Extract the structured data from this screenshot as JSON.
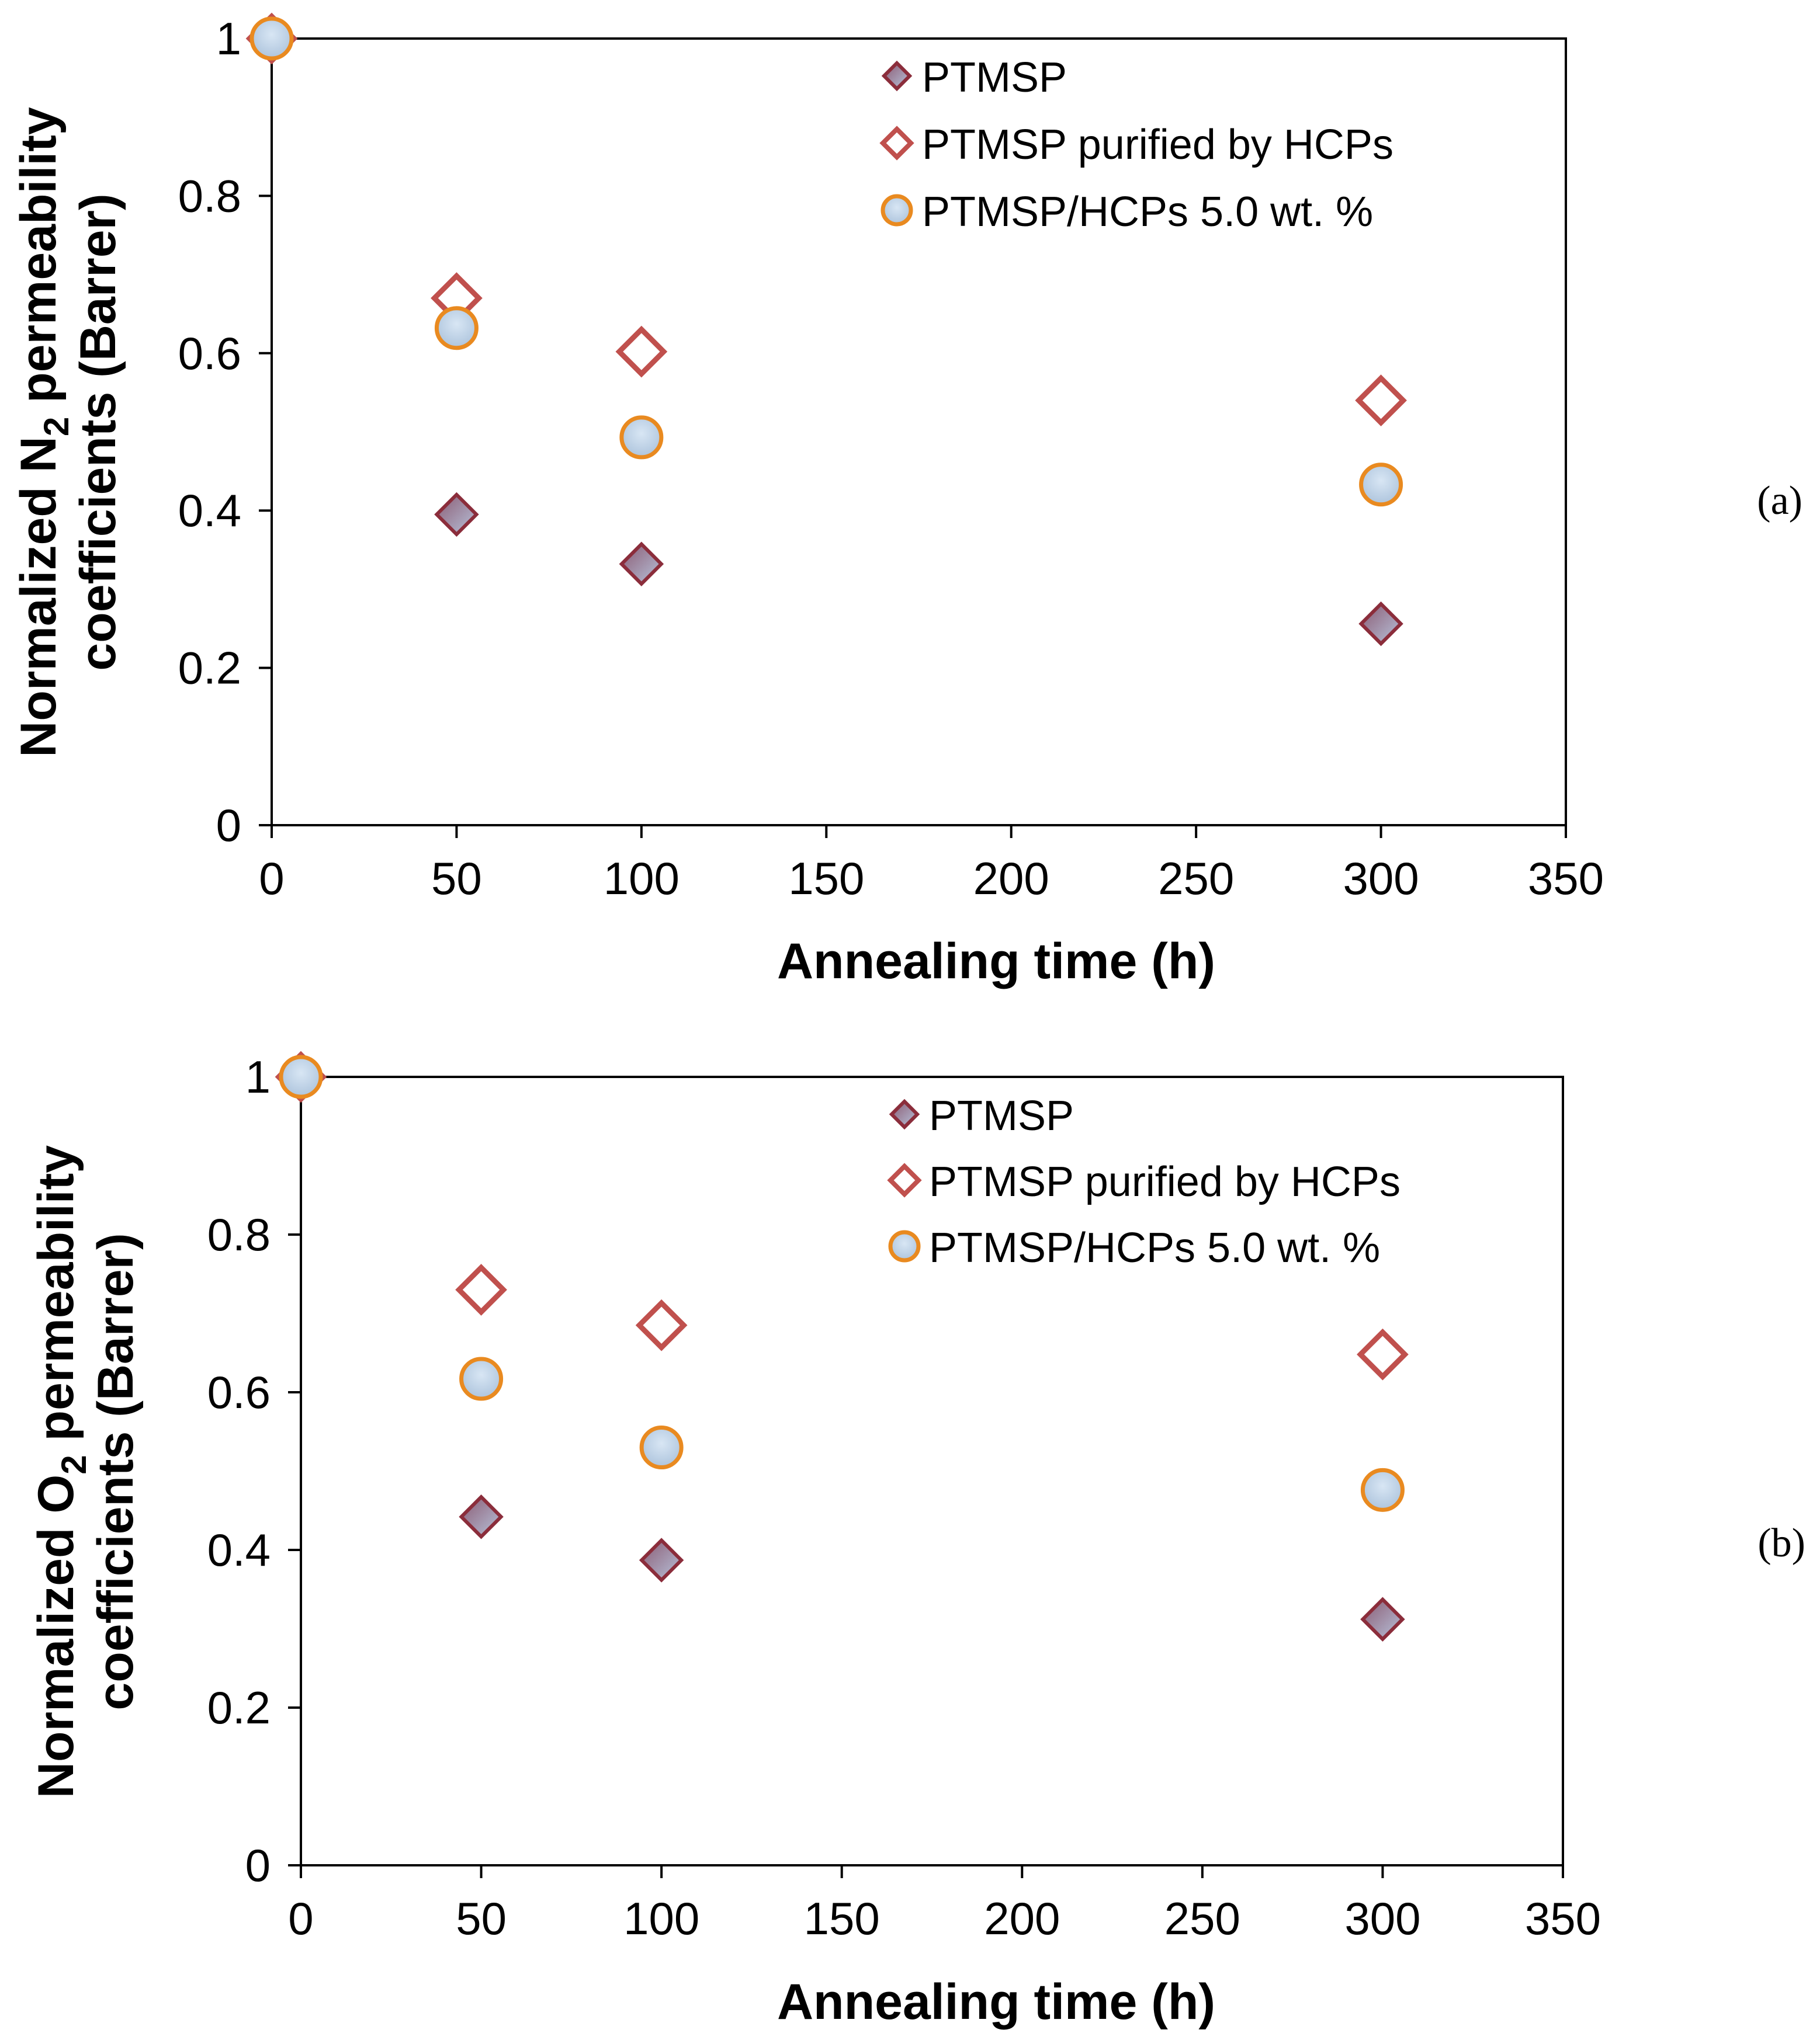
{
  "chart_data": [
    {
      "type": "scatter",
      "panel_label": "(a)",
      "xlabel": "Annealing time (h)",
      "ylabel_parts": [
        "Normalized N",
        "2",
        " permeability"
      ],
      "ylabel_line2": "coefficients (Barrer)",
      "xlim": [
        0,
        350
      ],
      "ylim": [
        0,
        1
      ],
      "x_ticks": [
        "0",
        "50",
        "100",
        "150",
        "200",
        "250",
        "300",
        "350"
      ],
      "y_ticks": [
        "0",
        "0.2",
        "0.4",
        "0.6",
        "0.8",
        "1"
      ],
      "grid": false,
      "legend_position": "top-right",
      "series": [
        {
          "name": "PTMSP",
          "marker": "filled-diamond",
          "x": [
            0,
            50,
            100,
            300
          ],
          "y": [
            1.0,
            0.395,
            0.332,
            0.256
          ]
        },
        {
          "name": "PTMSP purified by HCPs",
          "marker": "open-diamond",
          "x": [
            0,
            50,
            100,
            300
          ],
          "y": [
            1.0,
            0.67,
            0.602,
            0.54
          ]
        },
        {
          "name": "PTMSP/HCPs 5.0 wt. %",
          "marker": "circle",
          "x": [
            0,
            50,
            100,
            300
          ],
          "y": [
            1.0,
            0.632,
            0.493,
            0.433
          ]
        }
      ]
    },
    {
      "type": "scatter",
      "panel_label": "(b)",
      "xlabel": "Annealing time (h)",
      "ylabel_parts": [
        "Normalized O",
        "2",
        " permeability"
      ],
      "ylabel_line2": "coefficients (Barrer)",
      "xlim": [
        0,
        350
      ],
      "ylim": [
        0,
        1
      ],
      "x_ticks": [
        "0",
        "50",
        "100",
        "150",
        "200",
        "250",
        "300",
        "350"
      ],
      "y_ticks": [
        "0",
        "0.2",
        "0.4",
        "0.6",
        "0.8",
        "1"
      ],
      "grid": false,
      "legend_position": "top-right",
      "series": [
        {
          "name": "PTMSP",
          "marker": "filled-diamond",
          "x": [
            0,
            50,
            100,
            300
          ],
          "y": [
            1.0,
            0.442,
            0.387,
            0.312
          ]
        },
        {
          "name": "PTMSP purified by HCPs",
          "marker": "open-diamond",
          "x": [
            0,
            50,
            100,
            300
          ],
          "y": [
            1.0,
            0.73,
            0.685,
            0.648
          ]
        },
        {
          "name": "PTMSP/HCPs 5.0 wt. %",
          "marker": "circle",
          "x": [
            0,
            50,
            100,
            300
          ],
          "y": [
            1.0,
            0.617,
            0.53,
            0.476
          ]
        }
      ]
    }
  ],
  "colors": {
    "diamond_fill": "#9a6f85",
    "diamond_stroke": "#8b2d3b",
    "open_diamond_stroke": "#c0504d",
    "circle_fill": "#b9cfe6",
    "circle_stroke": "#e98a20"
  }
}
